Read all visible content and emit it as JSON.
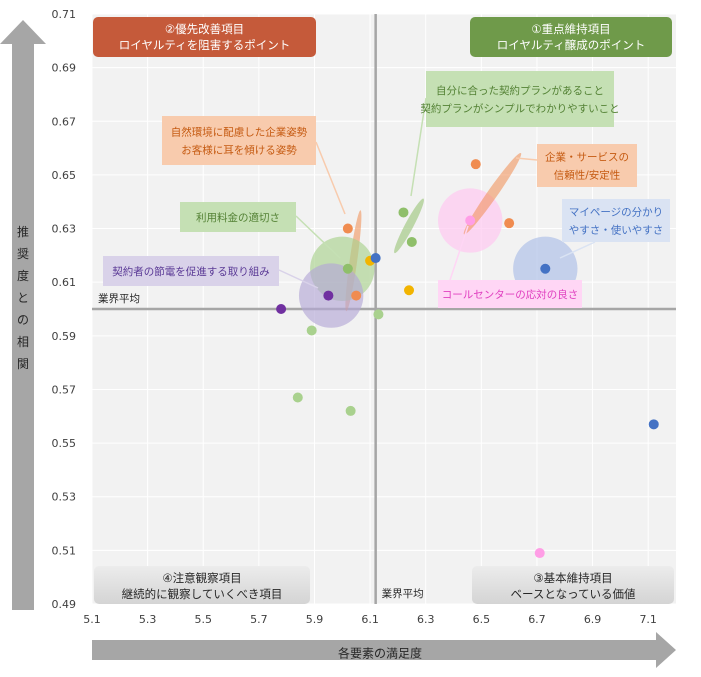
{
  "chart_data": {
    "type": "scatter",
    "title": "",
    "xlabel": "各要素の満足度",
    "ylabel": "推奨度との相関",
    "xlim": [
      5.1,
      7.2
    ],
    "ylim": [
      0.49,
      0.71
    ],
    "x_ticks": [
      "5.1",
      "5.3",
      "5.5",
      "5.7",
      "5.9",
      "6.1",
      "6.3",
      "6.5",
      "6.7",
      "6.9",
      "7.1"
    ],
    "y_ticks": [
      "0.71",
      "0.69",
      "0.67",
      "0.65",
      "0.63",
      "0.61",
      "0.59",
      "0.57",
      "0.55",
      "0.53",
      "0.51",
      "0.49"
    ],
    "grid": true,
    "reference_lines": {
      "x": 6.12,
      "y": 0.6,
      "x_label": "業界平均",
      "y_label": "業界平均"
    },
    "quadrants": [
      {
        "id": "q2",
        "title": "②優先改善項目",
        "subtitle": "ロイヤルティを阻害するポイント",
        "color": "#c55a3a"
      },
      {
        "id": "q1",
        "title": "①重点維持項目",
        "subtitle": "ロイヤルティ醸成のポイント",
        "color": "#6f9a4a"
      },
      {
        "id": "q4",
        "title": "④注意観察項目",
        "subtitle": "継続的に観察していくべき項目",
        "color": "#d9d9d9"
      },
      {
        "id": "q3",
        "title": "③基本維持項目",
        "subtitle": "ベースとなっている価値",
        "color": "#d9d9d9"
      }
    ],
    "points": [
      {
        "x": 6.02,
        "y": 0.63,
        "color": "#f08c50"
      },
      {
        "x": 6.02,
        "y": 0.615,
        "color": "#8fbf6a"
      },
      {
        "x": 6.05,
        "y": 0.605,
        "color": "#f08c50"
      },
      {
        "x": 6.1,
        "y": 0.618,
        "color": "#f2b400"
      },
      {
        "x": 6.12,
        "y": 0.619,
        "color": "#4472c4"
      },
      {
        "x": 6.13,
        "y": 0.598,
        "color": "#a9d18e"
      },
      {
        "x": 6.22,
        "y": 0.636,
        "color": "#8fbf6a"
      },
      {
        "x": 6.25,
        "y": 0.625,
        "color": "#8fbf6a"
      },
      {
        "x": 6.24,
        "y": 0.607,
        "color": "#f2b400"
      },
      {
        "x": 6.46,
        "y": 0.633,
        "color": "#ff9ee6"
      },
      {
        "x": 6.48,
        "y": 0.654,
        "color": "#f08c50"
      },
      {
        "x": 6.6,
        "y": 0.632,
        "color": "#f08c50"
      },
      {
        "x": 6.73,
        "y": 0.615,
        "color": "#4472c4"
      },
      {
        "x": 5.95,
        "y": 0.605,
        "color": "#7030a0"
      },
      {
        "x": 5.78,
        "y": 0.6,
        "color": "#7030a0"
      },
      {
        "x": 5.89,
        "y": 0.592,
        "color": "#a9d18e"
      },
      {
        "x": 5.84,
        "y": 0.567,
        "color": "#a9d18e"
      },
      {
        "x": 6.03,
        "y": 0.562,
        "color": "#a9d18e"
      },
      {
        "x": 7.12,
        "y": 0.557,
        "color": "#4472c4"
      },
      {
        "x": 6.71,
        "y": 0.509,
        "color": "#ff9ee6"
      }
    ],
    "highlights": [
      {
        "shape": "ellipse",
        "cx": 6.04,
        "cy": 0.618,
        "rx": 0.045,
        "ry": 0.019,
        "color": "#f08c50"
      },
      {
        "shape": "circle",
        "cx": 6.0,
        "cy": 0.615,
        "r": 0.012,
        "color": "#a9d18e"
      },
      {
        "shape": "circle",
        "cx": 5.96,
        "cy": 0.605,
        "r": 0.012,
        "color": "#b4a7d6"
      },
      {
        "shape": "ellipse",
        "cx": 6.24,
        "cy": 0.631,
        "rx": 0.05,
        "ry": 0.0115,
        "color": "#8fbf6a"
      },
      {
        "shape": "circle",
        "cx": 6.46,
        "cy": 0.633,
        "r": 0.012,
        "color": "#ffc4f0"
      },
      {
        "shape": "ellipse",
        "cx": 6.54,
        "cy": 0.643,
        "rx": 0.06,
        "ry": 0.0185,
        "color": "#f08c50"
      },
      {
        "shape": "circle",
        "cx": 6.73,
        "cy": 0.615,
        "r": 0.012,
        "color": "#aabde6"
      }
    ],
    "annotations": [
      {
        "id": "nature",
        "lines": [
          "自然環境に配慮した企業姿勢",
          "お客様に耳を傾ける姿勢"
        ],
        "bg": "#f8cbad",
        "text_color": "#c55a11"
      },
      {
        "id": "price",
        "lines": [
          "利用料金の適切さ"
        ],
        "bg": "#c5e0b4",
        "text_color": "#548235"
      },
      {
        "id": "saving",
        "lines": [
          "契約者の節電を促進する取り組み"
        ],
        "bg": "#d9d2e9",
        "text_color": "#5b3a96"
      },
      {
        "id": "plan",
        "lines": [
          "自分に合った契約プランがあること",
          "契約プランがシンプルでわかりやすいこと"
        ],
        "bg": "#c5e0b4",
        "text_color": "#548235"
      },
      {
        "id": "trust",
        "lines": [
          "企業・サービスの",
          "信頼性/安定性"
        ],
        "bg": "#f8cbad",
        "text_color": "#c55a11"
      },
      {
        "id": "mypage",
        "lines": [
          "マイページの分かり",
          "やすさ・使いやすさ"
        ],
        "bg": "#dae3f3",
        "text_color": "#4472c4"
      },
      {
        "id": "callcenter",
        "lines": [
          "コールセンターの応対の良さ"
        ],
        "bg": "#ffd6f5",
        "text_color": "#e040c0"
      }
    ]
  }
}
